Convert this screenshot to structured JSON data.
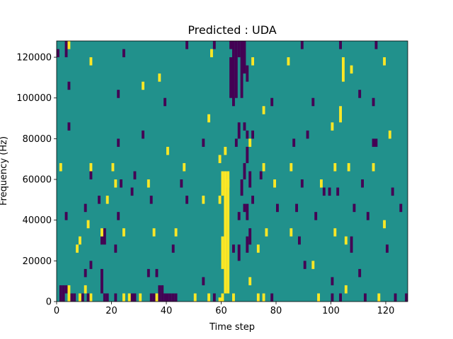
{
  "chart_data": {
    "type": "heatmap",
    "title": "Predicted : UDA",
    "xlabel": "Time step",
    "ylabel": "Frequency (Hz)",
    "xlim": [
      0,
      128
    ],
    "ylim": [
      0,
      128000
    ],
    "x_ticks": [
      0,
      20,
      40,
      60,
      80,
      100,
      120
    ],
    "x_tick_labels": [
      "0",
      "20",
      "40",
      "60",
      "80",
      "100",
      "120"
    ],
    "y_ticks": [
      0,
      20000,
      40000,
      60000,
      80000,
      100000,
      120000
    ],
    "y_tick_labels": [
      "0",
      "20000",
      "40000",
      "60000",
      "80000",
      "100000",
      "120000"
    ],
    "colormap": "viridis",
    "colors": {
      "background": "#21918c",
      "low": "#440154",
      "high": "#fde725"
    },
    "grid": false,
    "bin_height_hz": 2000,
    "high_cells": [
      [
        59,
        0,
        1
      ],
      [
        60,
        0,
        2
      ],
      [
        61,
        2,
        30
      ],
      [
        62,
        2,
        30
      ],
      [
        60,
        8,
        8
      ],
      [
        60,
        26,
        6
      ],
      [
        59,
        34,
        2
      ],
      [
        55,
        0,
        2
      ],
      [
        73,
        0,
        2
      ],
      [
        75,
        0,
        2
      ],
      [
        4,
        0,
        4
      ],
      [
        8,
        0,
        2
      ],
      [
        10,
        2,
        2
      ],
      [
        12,
        0,
        2
      ],
      [
        24,
        0,
        2
      ],
      [
        26,
        0,
        2
      ],
      [
        30,
        0,
        2
      ],
      [
        36,
        0,
        2
      ],
      [
        50,
        0,
        2
      ],
      [
        64,
        0,
        2
      ],
      [
        95,
        0,
        2
      ],
      [
        105,
        2,
        2
      ],
      [
        117,
        0,
        2
      ],
      [
        70,
        4,
        2
      ],
      [
        93,
        8,
        2
      ],
      [
        7,
        12,
        2
      ],
      [
        8,
        14,
        2
      ],
      [
        11,
        18,
        2
      ],
      [
        16,
        16,
        2
      ],
      [
        24,
        16,
        2
      ],
      [
        35,
        16,
        2
      ],
      [
        43,
        16,
        2
      ],
      [
        73,
        12,
        2
      ],
      [
        76,
        16,
        2
      ],
      [
        85,
        16,
        2
      ],
      [
        101,
        16,
        2
      ],
      [
        105,
        14,
        2
      ],
      [
        119,
        18,
        2
      ],
      [
        18,
        24,
        2
      ],
      [
        53,
        24,
        2
      ],
      [
        59,
        24,
        2
      ],
      [
        21,
        28,
        2
      ],
      [
        33,
        28,
        2
      ],
      [
        62,
        28,
        2
      ],
      [
        79,
        28,
        2
      ],
      [
        96,
        28,
        2
      ],
      [
        1,
        32,
        2
      ],
      [
        12,
        32,
        2
      ],
      [
        20,
        32,
        2
      ],
      [
        46,
        32,
        2
      ],
      [
        75,
        32,
        2
      ],
      [
        85,
        32,
        2
      ],
      [
        101,
        32,
        2
      ],
      [
        106,
        32,
        2
      ],
      [
        115,
        32,
        2
      ],
      [
        40,
        36,
        2
      ],
      [
        61,
        36,
        2
      ],
      [
        70,
        38,
        2
      ],
      [
        100,
        42,
        2
      ],
      [
        121,
        40,
        2
      ],
      [
        55,
        44,
        2
      ],
      [
        75,
        46,
        2
      ],
      [
        103,
        44,
        4
      ],
      [
        31,
        52,
        2
      ],
      [
        37,
        54,
        2
      ],
      [
        104,
        54,
        6
      ],
      [
        107,
        56,
        2
      ],
      [
        84,
        58,
        2
      ],
      [
        4,
        62,
        2
      ],
      [
        12,
        58,
        2
      ],
      [
        56,
        60,
        2
      ],
      [
        71,
        58,
        2
      ],
      [
        119,
        58,
        2
      ],
      [
        1,
        64,
        2
      ],
      [
        8,
        66,
        2
      ],
      [
        15,
        64,
        2
      ],
      [
        44,
        66,
        2
      ],
      [
        60,
        64,
        2
      ],
      [
        91,
        64,
        2
      ],
      [
        109,
        64,
        2
      ],
      [
        122,
        64,
        2
      ],
      [
        7,
        70,
        2
      ],
      [
        18,
        70,
        2
      ],
      [
        27,
        70,
        2
      ],
      [
        34,
        70,
        2
      ],
      [
        45,
        72,
        2
      ],
      [
        48,
        72,
        2
      ],
      [
        57,
        72,
        2
      ],
      [
        63,
        72,
        2
      ],
      [
        68,
        70,
        2
      ],
      [
        95,
        72,
        2
      ],
      [
        110,
        70,
        2
      ],
      [
        31,
        78,
        2
      ],
      [
        84,
        74,
        2
      ],
      [
        80,
        72,
        2
      ],
      [
        89,
        72,
        2
      ],
      [
        57,
        76,
        2
      ],
      [
        69,
        78,
        2
      ],
      [
        115,
        80,
        2
      ],
      [
        22,
        82,
        2
      ],
      [
        44,
        86,
        2
      ],
      [
        39,
        88,
        2
      ],
      [
        60,
        78,
        2
      ],
      [
        118,
        82,
        2
      ],
      [
        21,
        98,
        2
      ],
      [
        70,
        98,
        2
      ],
      [
        83,
        96,
        2
      ],
      [
        99,
        96,
        2
      ],
      [
        102,
        100,
        2
      ],
      [
        106,
        100,
        2
      ],
      [
        116,
        100,
        2
      ],
      [
        3,
        110,
        2
      ],
      [
        12,
        106,
        2
      ],
      [
        13,
        108,
        2
      ],
      [
        30,
        104,
        2
      ],
      [
        34,
        104,
        2
      ],
      [
        41,
        102,
        2
      ],
      [
        49,
        102,
        2
      ],
      [
        54,
        100,
        2
      ],
      [
        62,
        104,
        2
      ],
      [
        74,
        102,
        2
      ],
      [
        92,
        104,
        2
      ],
      [
        99,
        100,
        2
      ],
      [
        120,
        104,
        2
      ],
      [
        18,
        116,
        2
      ],
      [
        23,
        118,
        2
      ],
      [
        51,
        118,
        2
      ],
      [
        77,
        116,
        2
      ],
      [
        87,
        120,
        2
      ],
      [
        92,
        122,
        2
      ],
      [
        98,
        116,
        2
      ],
      [
        6,
        118,
        2
      ],
      [
        6,
        120,
        2
      ],
      [
        1,
        120,
        2
      ],
      [
        74,
        126,
        2
      ],
      [
        65,
        112,
        2
      ],
      [
        64,
        106,
        2
      ],
      [
        79,
        110,
        2
      ]
    ],
    "low_cells": [
      [
        1,
        0,
        4
      ],
      [
        2,
        0,
        4
      ],
      [
        3,
        2,
        2
      ],
      [
        5,
        0,
        2
      ],
      [
        6,
        0,
        2
      ],
      [
        9,
        0,
        2
      ],
      [
        11,
        0,
        2
      ],
      [
        17,
        0,
        2
      ],
      [
        18,
        0,
        2
      ],
      [
        21,
        0,
        2
      ],
      [
        27,
        0,
        2
      ],
      [
        28,
        0,
        2
      ],
      [
        34,
        0,
        2
      ],
      [
        35,
        0,
        2
      ],
      [
        37,
        0,
        4
      ],
      [
        38,
        0,
        4
      ],
      [
        39,
        0,
        2
      ],
      [
        40,
        0,
        2
      ],
      [
        41,
        0,
        2
      ],
      [
        42,
        0,
        2
      ],
      [
        43,
        0,
        2
      ],
      [
        57,
        0,
        2
      ],
      [
        78,
        0,
        2
      ],
      [
        100,
        0,
        2
      ],
      [
        103,
        0,
        2
      ],
      [
        112,
        0,
        2
      ],
      [
        123,
        0,
        2
      ],
      [
        127,
        0,
        2
      ],
      [
        16,
        2,
        6
      ],
      [
        10,
        6,
        2
      ],
      [
        12,
        8,
        2
      ],
      [
        33,
        6,
        2
      ],
      [
        36,
        6,
        2
      ],
      [
        53,
        4,
        2
      ],
      [
        90,
        8,
        2
      ],
      [
        100,
        4,
        2
      ],
      [
        110,
        6,
        2
      ],
      [
        16,
        14,
        2
      ],
      [
        17,
        14,
        4
      ],
      [
        21,
        12,
        2
      ],
      [
        42,
        12,
        2
      ],
      [
        64,
        12,
        2
      ],
      [
        66,
        10,
        4
      ],
      [
        69,
        12,
        4
      ],
      [
        70,
        14,
        4
      ],
      [
        88,
        14,
        2
      ],
      [
        107,
        12,
        4
      ],
      [
        120,
        12,
        2
      ],
      [
        3,
        20,
        2
      ],
      [
        10,
        22,
        2
      ],
      [
        15,
        24,
        2
      ],
      [
        22,
        20,
        2
      ],
      [
        27,
        26,
        2
      ],
      [
        34,
        24,
        2
      ],
      [
        47,
        24,
        2
      ],
      [
        66,
        20,
        2
      ],
      [
        68,
        22,
        2
      ],
      [
        69,
        20,
        4
      ],
      [
        71,
        24,
        2
      ],
      [
        80,
        22,
        2
      ],
      [
        87,
        22,
        2
      ],
      [
        94,
        20,
        2
      ],
      [
        99,
        26,
        2
      ],
      [
        108,
        22,
        2
      ],
      [
        113,
        20,
        2
      ],
      [
        125,
        22,
        2
      ],
      [
        12,
        30,
        2
      ],
      [
        23,
        28,
        2
      ],
      [
        28,
        30,
        2
      ],
      [
        45,
        28,
        2
      ],
      [
        67,
        26,
        4
      ],
      [
        68,
        30,
        4
      ],
      [
        69,
        34,
        4
      ],
      [
        70,
        28,
        4
      ],
      [
        74,
        30,
        2
      ],
      [
        89,
        28,
        2
      ],
      [
        97,
        26,
        2
      ],
      [
        102,
        26,
        2
      ],
      [
        111,
        28,
        2
      ],
      [
        122,
        26,
        2
      ],
      [
        4,
        42,
        2
      ],
      [
        22,
        38,
        2
      ],
      [
        31,
        40,
        2
      ],
      [
        53,
        38,
        2
      ],
      [
        65,
        38,
        2
      ],
      [
        66,
        40,
        4
      ],
      [
        68,
        42,
        2
      ],
      [
        69,
        40,
        2
      ],
      [
        71,
        40,
        2
      ],
      [
        86,
        38,
        2
      ],
      [
        91,
        40,
        2
      ],
      [
        115,
        38,
        2
      ],
      [
        116,
        38,
        2
      ],
      [
        4,
        52,
        2
      ],
      [
        22,
        50,
        2
      ],
      [
        39,
        48,
        2
      ],
      [
        63,
        50,
        10
      ],
      [
        64,
        48,
        14
      ],
      [
        65,
        50,
        16
      ],
      [
        67,
        50,
        14
      ],
      [
        68,
        56,
        6
      ],
      [
        69,
        54,
        4
      ],
      [
        78,
        48,
        2
      ],
      [
        93,
        48,
        2
      ],
      [
        110,
        50,
        2
      ],
      [
        115,
        48,
        2
      ],
      [
        0,
        60,
        2
      ],
      [
        3,
        60,
        4
      ],
      [
        4,
        66,
        2
      ],
      [
        24,
        60,
        2
      ],
      [
        29,
        64,
        2
      ],
      [
        47,
        62,
        2
      ],
      [
        57,
        62,
        2
      ],
      [
        63,
        62,
        8
      ],
      [
        64,
        62,
        6
      ],
      [
        66,
        60,
        14
      ],
      [
        68,
        62,
        4
      ],
      [
        69,
        64,
        2
      ],
      [
        89,
        62,
        2
      ],
      [
        103,
        62,
        2
      ],
      [
        116,
        62,
        2
      ],
      [
        7,
        74,
        2
      ],
      [
        16,
        72,
        2
      ],
      [
        25,
        70,
        2
      ],
      [
        33,
        72,
        2
      ],
      [
        36,
        70,
        2
      ],
      [
        43,
        70,
        2
      ],
      [
        49,
        68,
        2
      ],
      [
        52,
        72,
        2
      ],
      [
        58,
        70,
        2
      ],
      [
        62,
        66,
        2
      ],
      [
        64,
        70,
        12
      ],
      [
        65,
        70,
        10
      ],
      [
        66,
        72,
        16
      ],
      [
        67,
        80,
        8
      ],
      [
        68,
        78,
        10
      ],
      [
        69,
        76,
        4
      ],
      [
        73,
        72,
        2
      ],
      [
        81,
        74,
        2
      ],
      [
        91,
        72,
        2
      ],
      [
        103,
        66,
        4
      ],
      [
        115,
        66,
        2
      ],
      [
        119,
        72,
        2
      ],
      [
        20,
        76,
        2
      ],
      [
        25,
        82,
        2
      ],
      [
        37,
        86,
        2
      ],
      [
        71,
        80,
        2
      ],
      [
        103,
        74,
        2
      ],
      [
        105,
        74,
        2
      ],
      [
        112,
        72,
        2
      ],
      [
        33,
        90,
        2
      ],
      [
        65,
        84,
        2
      ],
      [
        70,
        86,
        2
      ],
      [
        121,
        90,
        2
      ],
      [
        3,
        102,
        2
      ],
      [
        5,
        102,
        4
      ],
      [
        11,
        102,
        2
      ],
      [
        28,
        100,
        2
      ],
      [
        36,
        98,
        2
      ],
      [
        37,
        102,
        2
      ],
      [
        47,
        104,
        2
      ],
      [
        66,
        98,
        2
      ],
      [
        79,
        96,
        2
      ],
      [
        80,
        96,
        2
      ],
      [
        85,
        106,
        2
      ],
      [
        94,
        100,
        2
      ],
      [
        101,
        104,
        2
      ],
      [
        109,
        98,
        2
      ],
      [
        124,
        102,
        2
      ],
      [
        127,
        102,
        2
      ],
      [
        2,
        110,
        2
      ],
      [
        13,
        114,
        2
      ],
      [
        23,
        112,
        2
      ],
      [
        34,
        110,
        2
      ],
      [
        67,
        108,
        2
      ],
      [
        79,
        112,
        2
      ],
      [
        83,
        112,
        2
      ],
      [
        91,
        110,
        2
      ],
      [
        95,
        114,
        2
      ],
      [
        121,
        108,
        2
      ],
      [
        123,
        112,
        2
      ],
      [
        4,
        120,
        2
      ],
      [
        12,
        118,
        2
      ],
      [
        47,
        120,
        2
      ],
      [
        60,
        116,
        2
      ],
      [
        68,
        120,
        2
      ],
      [
        84,
        120,
        2
      ],
      [
        89,
        120,
        2
      ],
      [
        94,
        114,
        2
      ],
      [
        106,
        118,
        2
      ],
      [
        115,
        116,
        2
      ],
      [
        63,
        118,
        2
      ],
      [
        9,
        122,
        2
      ],
      [
        19,
        122,
        2
      ],
      [
        93,
        122,
        2
      ],
      [
        73,
        126,
        2
      ],
      [
        1,
        66,
        2
      ],
      [
        3,
        66,
        4
      ]
    ]
  }
}
